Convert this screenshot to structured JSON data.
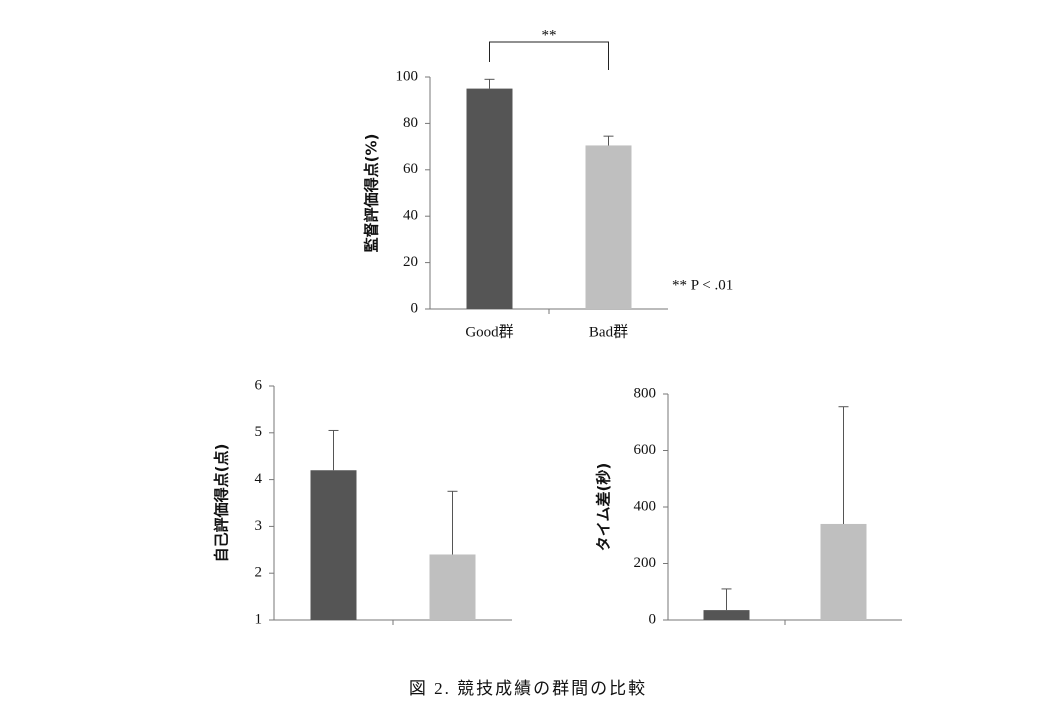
{
  "chart_data": [
    {
      "type": "bar",
      "y_label": "監督評価得点(%)",
      "categories": [
        "Good群",
        "Bad群"
      ],
      "values": [
        95,
        70.5
      ],
      "errors": [
        4,
        4
      ],
      "colors": [
        "#555555",
        "#bfbfbf"
      ],
      "ylim": [
        0,
        100
      ],
      "yticks": [
        0,
        20,
        40,
        60,
        80,
        100
      ],
      "significance": "**",
      "annotation": "** P < .01"
    },
    {
      "type": "bar",
      "y_label": "自己評価得点(点)",
      "categories": [
        null,
        null
      ],
      "values": [
        4.2,
        2.4
      ],
      "errors": [
        0.85,
        1.35
      ],
      "colors": [
        "#555555",
        "#bfbfbf"
      ],
      "ylim": [
        1,
        6
      ],
      "yticks": [
        1,
        2,
        3,
        4,
        5,
        6
      ]
    },
    {
      "type": "bar",
      "y_label": "タイム差(秒)",
      "categories": [
        null,
        null
      ],
      "values": [
        35,
        340
      ],
      "errors": [
        75,
        415
      ],
      "colors": [
        "#555555",
        "#bfbfbf"
      ],
      "ylim": [
        0,
        800
      ],
      "yticks": [
        0,
        200,
        400,
        600,
        800
      ]
    }
  ],
  "caption": "図 2. 競技成績の群間の比較"
}
